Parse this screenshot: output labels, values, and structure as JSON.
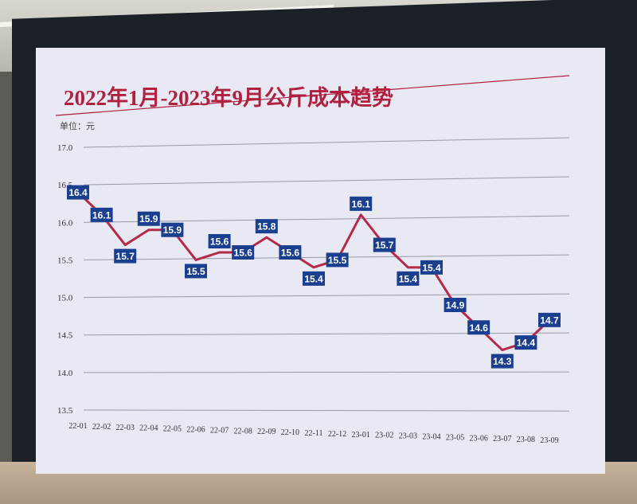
{
  "chart_data": {
    "type": "line",
    "title": "2022年1月-2023年9月公斤成本趋势",
    "unit_label": "单位：元",
    "xlabel": "",
    "ylabel": "",
    "ylim": [
      13.5,
      17.0
    ],
    "yticks": [
      "17.0",
      "16.5",
      "16.0",
      "15.5",
      "15.0",
      "14.5",
      "14.0",
      "13.5"
    ],
    "grid": true,
    "categories": [
      "22-01",
      "22-02",
      "22-03",
      "22-04",
      "22-05",
      "22-06",
      "22-07",
      "22-08",
      "22-09",
      "22-10",
      "22-11",
      "22-12",
      "23-01",
      "23-02",
      "23-03",
      "23-04",
      "23-05",
      "23-06",
      "23-07",
      "23-08",
      "23-09"
    ],
    "values": [
      16.4,
      16.1,
      15.7,
      15.9,
      15.9,
      15.5,
      15.6,
      15.6,
      15.8,
      15.6,
      15.4,
      15.5,
      16.1,
      15.7,
      15.4,
      15.4,
      14.9,
      14.6,
      14.3,
      14.4,
      14.7
    ],
    "colors": {
      "line": "#b42a48",
      "label_bg": "#1b3f8f",
      "label_text": "#ffffff",
      "title": "#b0203f"
    }
  }
}
